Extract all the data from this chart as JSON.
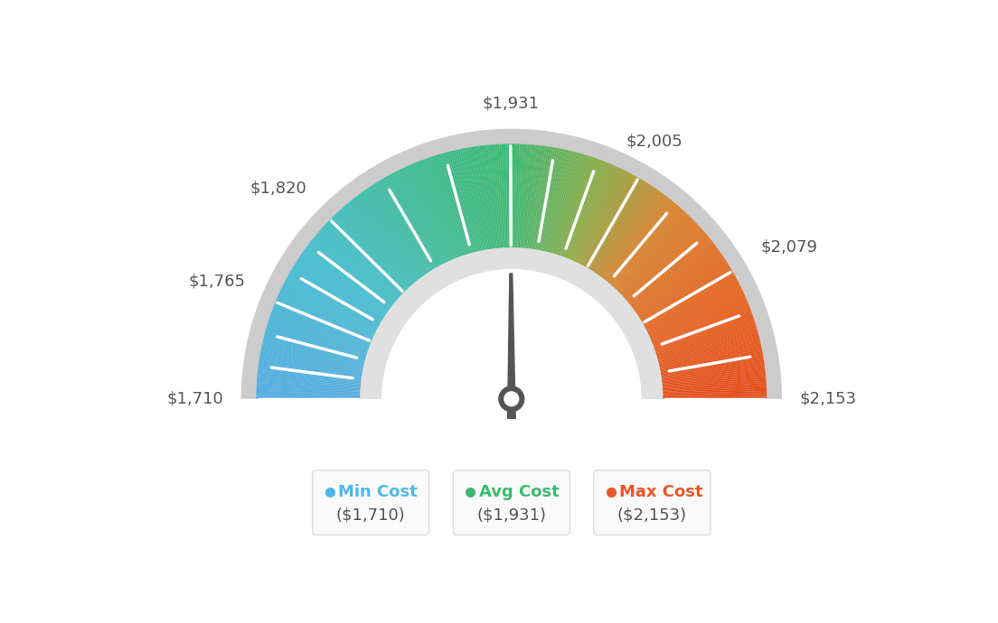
{
  "min_val": 1710,
  "max_val": 2153,
  "avg_val": 1931,
  "labels": [
    "$1,710",
    "$1,765",
    "$1,820",
    "$1,931",
    "$2,005",
    "$2,079",
    "$2,153"
  ],
  "label_values": [
    1710,
    1765,
    1820,
    1931,
    2005,
    2079,
    2153
  ],
  "legend_labels": [
    "Min Cost",
    "Avg Cost",
    "Max Cost"
  ],
  "legend_values": [
    "($1,710)",
    "($1,931)",
    "($2,153)"
  ],
  "legend_colors": [
    "#4db8e8",
    "#3dba6e",
    "#e8562a"
  ],
  "bg_color": "#ffffff",
  "color_stops": [
    [
      0.0,
      [
        0.33,
        0.68,
        0.89
      ]
    ],
    [
      0.2,
      [
        0.27,
        0.75,
        0.82
      ]
    ],
    [
      0.4,
      [
        0.24,
        0.74,
        0.55
      ]
    ],
    [
      0.5,
      [
        0.24,
        0.73,
        0.45
      ]
    ],
    [
      0.62,
      [
        0.55,
        0.68,
        0.28
      ]
    ],
    [
      0.72,
      [
        0.85,
        0.52,
        0.18
      ]
    ],
    [
      0.85,
      [
        0.91,
        0.4,
        0.13
      ]
    ],
    [
      1.0,
      [
        0.91,
        0.3,
        0.1
      ]
    ]
  ],
  "outer_bg_color": "#c8c8c8",
  "inner_arc_color": "#e0e0e0",
  "needle_color": "#555555",
  "label_color": "#555555"
}
